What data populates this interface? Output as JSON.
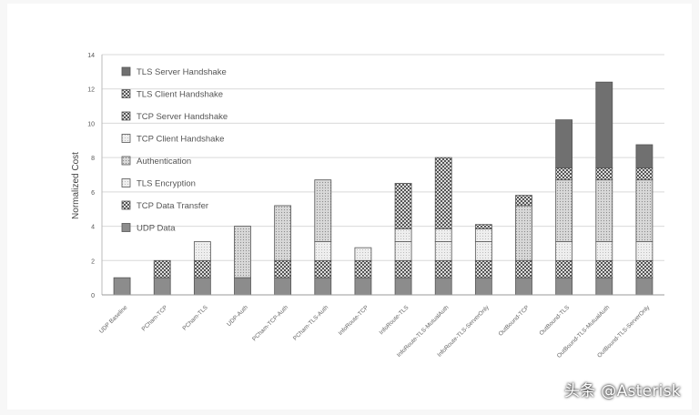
{
  "chart_data": {
    "type": "bar",
    "stacked": true,
    "ylabel": "Normalized Cost",
    "ylim": [
      0,
      14
    ],
    "yticks": [
      0,
      2,
      4,
      6,
      8,
      10,
      12,
      14
    ],
    "grid": true,
    "legend_position": "top-left",
    "categories": [
      "UDP Baseline",
      "PCham-TCP",
      "PCham-TLS",
      "UDP-Auth",
      "PCham-TCP-Auth",
      "PCham-TLS-Auth",
      "InfoRoute-TCP",
      "InfoRoute-TLS",
      "InfoRoute-TLS-MutualAuth",
      "InfoRoute-TLS-ServerOnly",
      "OutBound-TCP",
      "OutBound-TLS",
      "OutBound-TLS-MutualAuth",
      "OutBound-TLS-ServerOnly"
    ],
    "series": [
      {
        "name": "UDP Data",
        "color": "#8c8c8c",
        "pattern": "solid",
        "values": [
          1,
          1,
          1,
          1,
          1,
          1,
          1,
          1,
          1,
          1,
          1,
          1,
          1,
          1
        ]
      },
      {
        "name": "TCP Data Transfer",
        "color": "#7a7a7a",
        "pattern": "checker",
        "values": [
          0,
          1,
          1,
          0,
          1,
          1,
          1,
          1,
          1,
          1,
          1,
          1,
          1,
          1
        ]
      },
      {
        "name": "TLS Encryption",
        "color": "#e0e0e0",
        "pattern": "light",
        "values": [
          0,
          0,
          1.1,
          0,
          0,
          1.1,
          0.75,
          1.1,
          1.1,
          1.1,
          0,
          1.1,
          1.1,
          1.1
        ]
      },
      {
        "name": "Authentication",
        "color": "#c4c4c4",
        "pattern": "dots",
        "values": [
          0,
          0,
          0,
          3,
          3.2,
          3.6,
          0,
          0,
          0,
          0,
          3.2,
          3.6,
          3.6,
          3.6
        ]
      },
      {
        "name": "TCP Client Handshake",
        "color": "#ededed",
        "pattern": "light",
        "values": [
          0,
          0,
          0,
          0,
          0,
          0,
          0,
          0.75,
          0.75,
          0.75,
          0,
          0,
          0,
          0
        ]
      },
      {
        "name": "TCP Server Handshake",
        "color": "#aaaaaa",
        "pattern": "checker",
        "values": [
          0,
          0,
          0,
          0,
          0,
          0,
          0,
          0,
          0,
          0.25,
          0.6,
          0.7,
          0.7,
          0.7
        ]
      },
      {
        "name": "TLS Client Handshake",
        "color": "#6e6e6e",
        "pattern": "checker",
        "values": [
          0,
          0,
          0,
          0,
          0,
          0,
          0,
          2.65,
          4.15,
          0,
          0,
          0,
          0,
          0
        ]
      },
      {
        "name": "TLS Server Handshake",
        "color": "#707070",
        "pattern": "solid",
        "values": [
          0,
          0,
          0,
          0,
          0,
          0,
          0,
          0,
          0,
          0,
          0,
          2.8,
          5,
          1.35
        ]
      }
    ]
  },
  "watermark": "头条 @Asterisk"
}
